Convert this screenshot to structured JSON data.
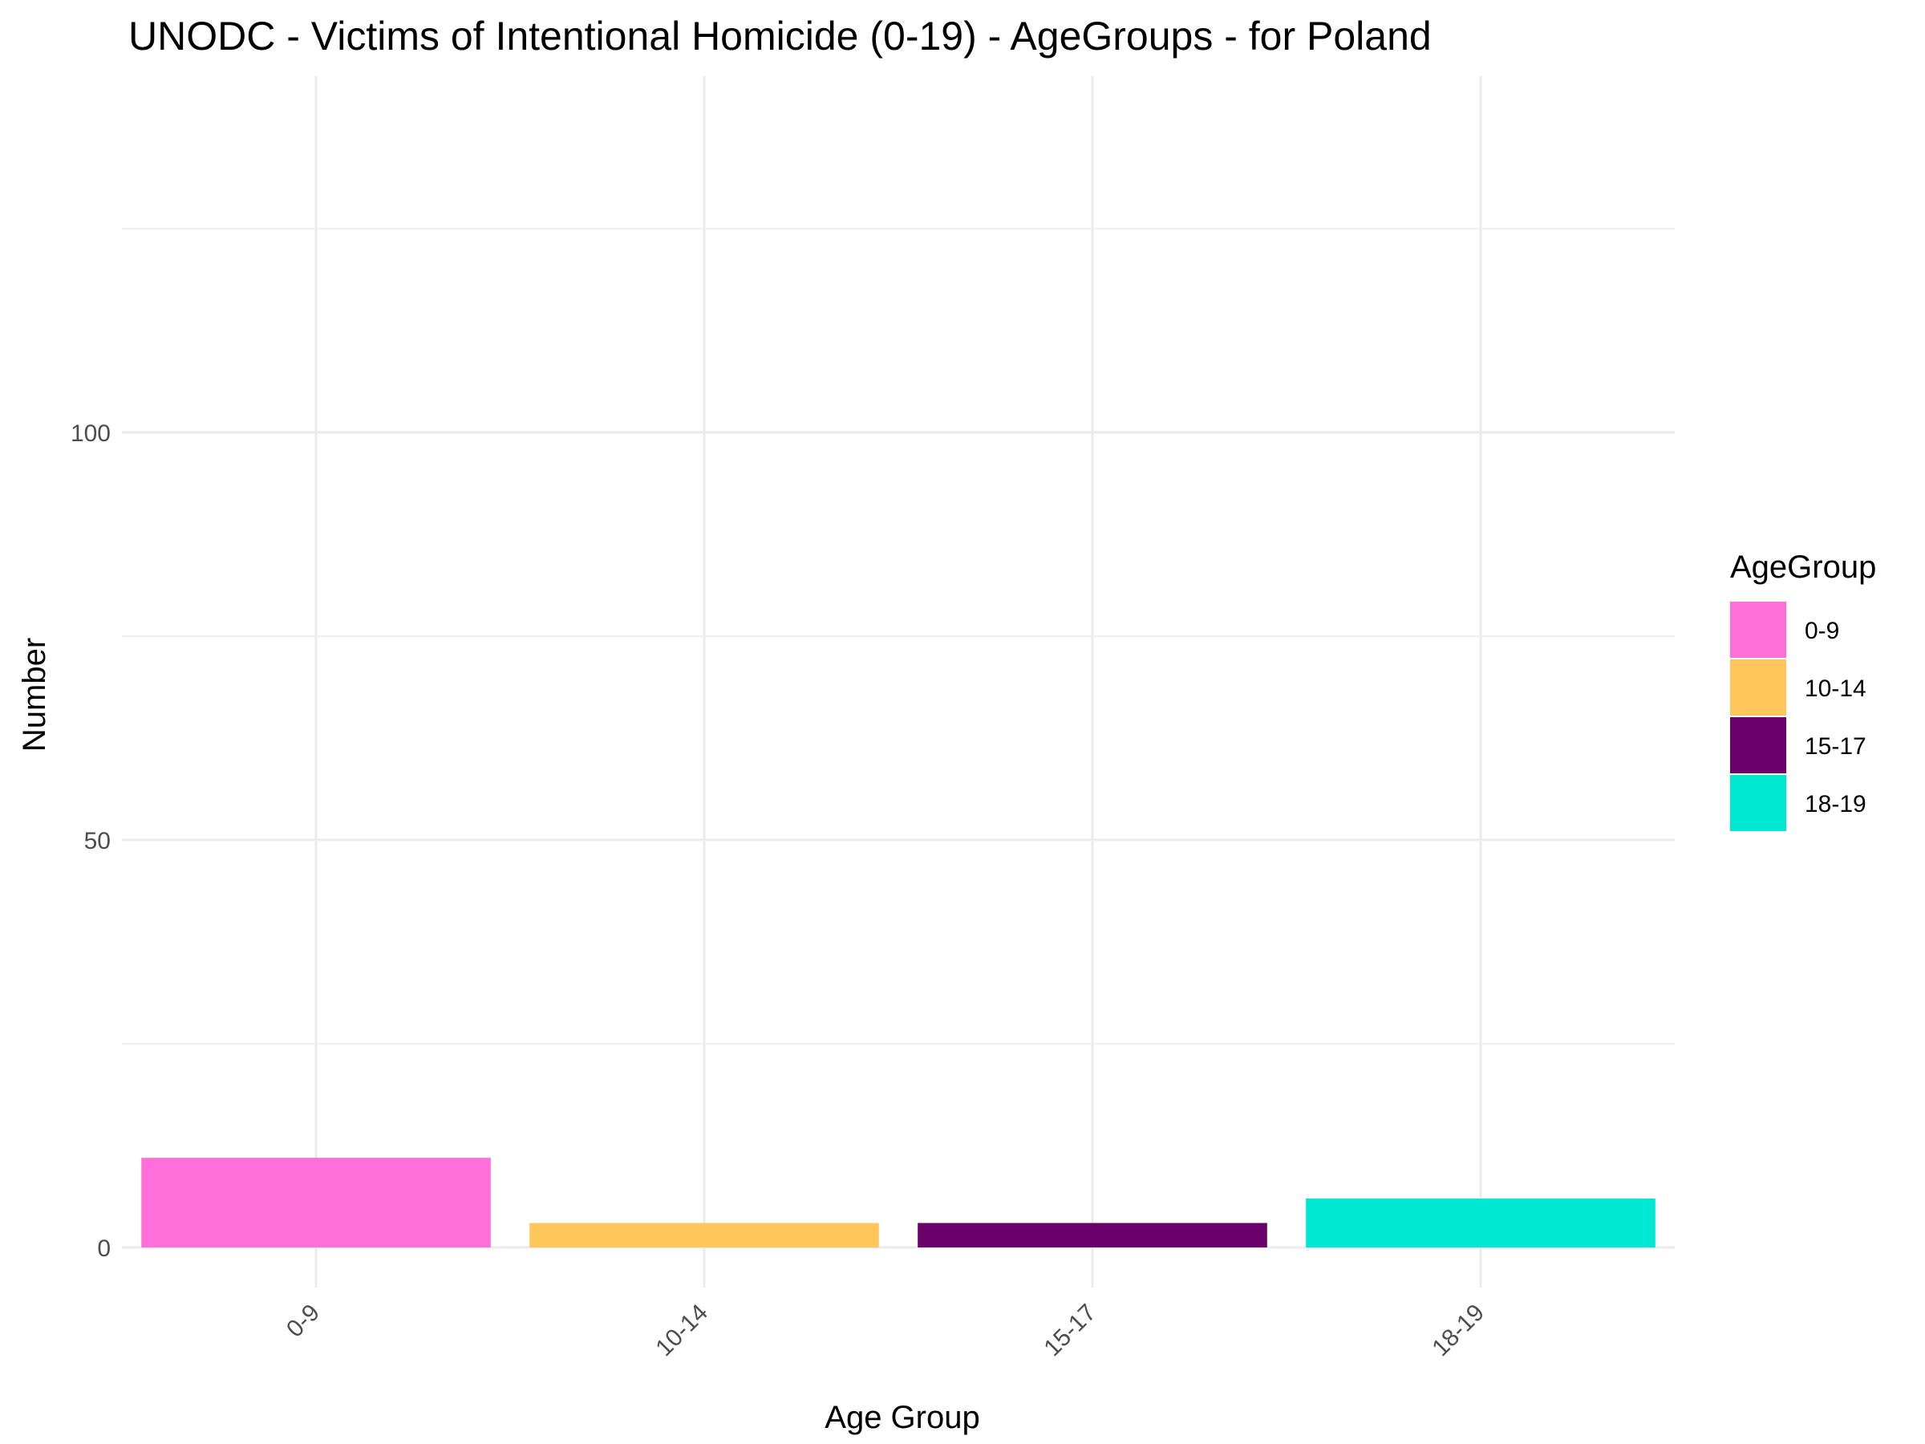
{
  "chart_data": {
    "type": "bar",
    "title": "UNODC - Victims of Intentional Homicide (0-19) - AgeGroups - for Poland",
    "xlabel": "Age Group",
    "ylabel": "Number",
    "categories": [
      "0-9",
      "10-14",
      "15-17",
      "18-19"
    ],
    "values": [
      11,
      3,
      3,
      6
    ],
    "colors": [
      "#ff6ed9",
      "#ffc65c",
      "#6b006b",
      "#00e8d1"
    ],
    "ylim": [
      -5,
      137
    ],
    "yticks": [
      0,
      50,
      100
    ],
    "y_minor_ticks": [
      25,
      75,
      125
    ],
    "grid": true,
    "legend": {
      "title": "AgeGroup",
      "placement": "right",
      "items": [
        "0-9",
        "10-14",
        "15-17",
        "18-19"
      ]
    }
  }
}
